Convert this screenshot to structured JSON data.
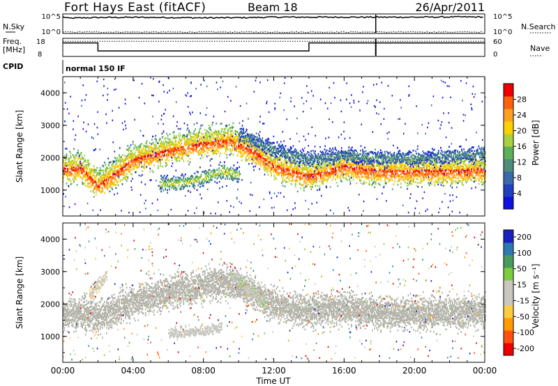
{
  "header": {
    "station": "Fort Hays East (fitACF)",
    "beam": "Beam 18",
    "date": "26/Apr/2011"
  },
  "top_panels": {
    "nsky_label": "N.Sky",
    "nsky_ticks": [
      "10^5",
      "10^0"
    ],
    "nsearch_label": "N.Search",
    "nsearch_ticks": [
      "10^5",
      "10^0"
    ],
    "freq_label_line1": "Freq.",
    "freq_label_line2": "[MHz]",
    "freq_ticks": [
      "18",
      "8"
    ],
    "nave_label": "Nave",
    "nave_ticks": [
      "60",
      "0"
    ],
    "cpid_label": "CPID",
    "cpid_value": "normal 150 IF"
  },
  "colors": {
    "power_scale": [
      "#1010e0",
      "#2040c0",
      "#3a6aa8",
      "#4c8c78",
      "#5cb05a",
      "#a8d040",
      "#ffd000",
      "#ffa020",
      "#ff6010",
      "#ee0000"
    ],
    "velocity_scale": [
      "#ee0000",
      "#ff5010",
      "#ff9a00",
      "#ffcc40",
      "#c8c8c0",
      "#c8c8c0",
      "#7ccc40",
      "#4a9a60",
      "#2e7ab0",
      "#1a20c0"
    ],
    "ground_scatter": "#b4b4aa"
  },
  "chart_data": [
    {
      "type": "line",
      "title": "N.Sky / N.Search",
      "x_range": [
        "00:00",
        "24:00"
      ],
      "ylim_log": [
        0,
        5
      ],
      "series": [
        {
          "name": "N.Sky",
          "style": "solid",
          "x": [
            0,
            0.3,
            2,
            4,
            6,
            8,
            10,
            12,
            14,
            16,
            17.8,
            20,
            22,
            24
          ],
          "y_log10": [
            4.6,
            4.2,
            4.4,
            4.45,
            4.4,
            4.3,
            4.35,
            4.5,
            4.5,
            4.5,
            4.5,
            4.5,
            4.55,
            4.55
          ]
        },
        {
          "name": "N.Search",
          "style": "dotted",
          "x": [
            0,
            4,
            8,
            12,
            16,
            20,
            24
          ],
          "y_log10": [
            0.4,
            0.4,
            0.4,
            0.4,
            0.4,
            0.4,
            0.4
          ]
        }
      ]
    },
    {
      "type": "line",
      "title": "Freq. / Nave",
      "x_range": [
        "00:00",
        "24:00"
      ],
      "series": [
        {
          "name": "Freq.",
          "unit": "MHz",
          "ylim": [
            8,
            18
          ],
          "x": [
            0,
            2,
            2,
            14,
            14,
            24
          ],
          "y": [
            16,
            16,
            11,
            11,
            16,
            16
          ]
        },
        {
          "name": "Nave",
          "style": "dotted",
          "ylim": [
            0,
            60
          ],
          "x": [
            0,
            4,
            8,
            12,
            16,
            20,
            24
          ],
          "y": [
            54,
            54,
            54,
            54,
            54,
            54,
            54
          ]
        }
      ]
    },
    {
      "type": "heatmap",
      "title": "Power",
      "xlabel": "Time UT",
      "ylabel": "Slant Range [km]",
      "x_ticks": [
        "00:00",
        "04:00",
        "08:00",
        "12:00",
        "16:00",
        "20:00",
        "00:00"
      ],
      "y_ticks": [
        "1000",
        "2000",
        "3000",
        "4000"
      ],
      "ylim": [
        200,
        4500
      ],
      "colorbar": {
        "label": "Power [dB]",
        "ticks": [
          "4",
          "8",
          "12",
          "16",
          "20",
          "24",
          "28"
        ],
        "range": [
          0,
          30
        ]
      },
      "bands": [
        {
          "x": [
            0,
            1,
            2,
            4,
            6,
            8,
            9.5,
            11,
            12,
            14,
            16,
            18,
            20,
            22,
            24
          ],
          "y_km": [
            1700,
            1750,
            1200,
            2000,
            2300,
            2500,
            2600,
            2200,
            1800,
            1500,
            1800,
            1650,
            1650,
            1650,
            1700
          ],
          "width_km": 650,
          "peak_db": 28
        },
        {
          "x": [
            5.5,
            7,
            8,
            9,
            10
          ],
          "y_km": [
            1200,
            1250,
            1400,
            1600,
            1500
          ],
          "width_km": 350,
          "peak_db": 18
        },
        {
          "x": [
            10,
            11,
            12,
            13,
            14,
            16,
            18,
            20,
            24
          ],
          "y_km": [
            2800,
            2500,
            2300,
            2100,
            2000,
            2100,
            2000,
            2000,
            2150
          ],
          "width_km": 350,
          "peak_db": 10
        }
      ]
    },
    {
      "type": "heatmap",
      "title": "Velocity",
      "xlabel": "Time UT",
      "ylabel": "Slant Range [km]",
      "x_ticks": [
        "00:00",
        "04:00",
        "08:00",
        "12:00",
        "16:00",
        "20:00",
        "00:00"
      ],
      "y_ticks": [
        "1000",
        "2000",
        "3000",
        "4000"
      ],
      "ylim": [
        200,
        4500
      ],
      "colorbar": {
        "label": "Velocity [m s⁻¹]",
        "ticks": [
          "200",
          "100",
          "50",
          "15",
          "-15",
          "-50",
          "-100",
          "-200"
        ],
        "range": [
          -250,
          250
        ]
      },
      "bands": [
        {
          "kind": "ground_scatter",
          "x": [
            0,
            1,
            2,
            4,
            6,
            8,
            9.5,
            11,
            12,
            14,
            16,
            18,
            20,
            22,
            24
          ],
          "y_km": [
            1700,
            1750,
            1600,
            2100,
            2400,
            2600,
            2700,
            2300,
            2000,
            1800,
            1900,
            1750,
            1750,
            1750,
            1800
          ],
          "width_km": 900
        },
        {
          "kind": "velocity",
          "x": [
            9.5,
            10.5,
            11.5
          ],
          "y_km": [
            3000,
            2500,
            2100
          ],
          "width_km": 400,
          "velocity": 40
        },
        {
          "kind": "velocity",
          "x": [
            6,
            7,
            8,
            9
          ],
          "y_km": [
            1100,
            1150,
            1200,
            1300
          ],
          "width_km": 300,
          "velocity": 30
        },
        {
          "kind": "velocity",
          "x": [
            1.5,
            2.5
          ],
          "y_km": [
            2300,
            2900
          ],
          "width_km": 400,
          "velocity": -40
        }
      ]
    }
  ]
}
